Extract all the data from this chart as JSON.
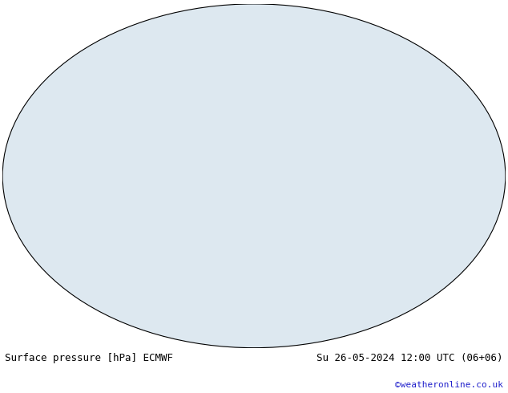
{
  "title_left": "Surface pressure [hPa] ECMWF",
  "title_right": "Su 26-05-2024 12:00 UTC (06+06)",
  "copyright": "©weatheronline.co.uk",
  "background_color": "#ffffff",
  "ocean_color": "#dde8f0",
  "land_color": "#c8dfa0",
  "text_color_left": "#000000",
  "text_color_right": "#000000",
  "text_color_copyright": "#2222cc",
  "font_size_title": 9,
  "font_size_copyright": 8,
  "fig_width": 6.34,
  "fig_height": 4.9,
  "dpi": 100
}
